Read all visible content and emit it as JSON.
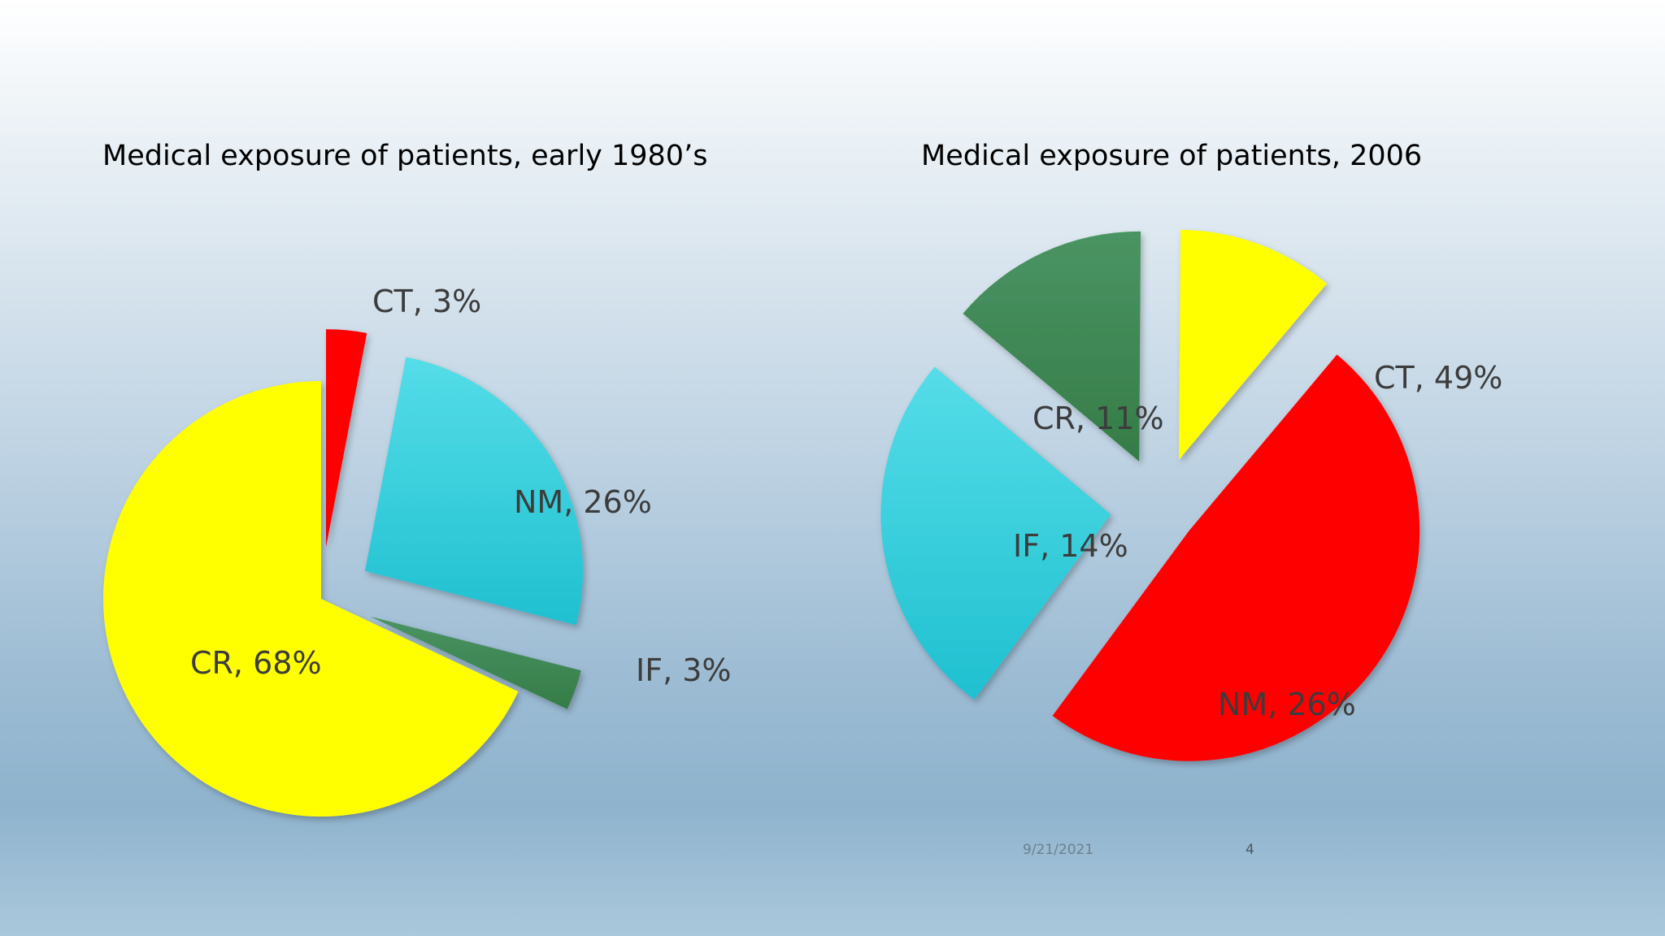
{
  "chart_data": [
    {
      "type": "pie",
      "title": "Medical exposure of patients, early 1980’s",
      "categories": [
        "CT",
        "NM",
        "IF",
        "CR"
      ],
      "values": [
        3,
        26,
        3,
        68
      ],
      "labels": [
        "CT, 3%",
        "NM, 26%",
        "IF, 3%",
        "CR, 68%"
      ],
      "colors": [
        "#ff0000",
        "#2ec8d6",
        "#3f8c56",
        "#ffff00"
      ],
      "exploded": true,
      "legend": "none"
    },
    {
      "type": "pie",
      "title": "Medical exposure of patients, 2006",
      "categories": [
        "CT",
        "NM",
        "IF",
        "CR"
      ],
      "values": [
        49,
        26,
        14,
        11
      ],
      "labels": [
        "CT, 49%",
        "NM, 26%",
        "IF, 14%",
        "CR, 11%"
      ],
      "colors": [
        "#ff0000",
        "#2ec8d6",
        "#3f8c56",
        "#ffff00"
      ],
      "exploded": true,
      "legend": "none"
    }
  ],
  "footer": {
    "date": "9/21/2021",
    "page": "4"
  }
}
